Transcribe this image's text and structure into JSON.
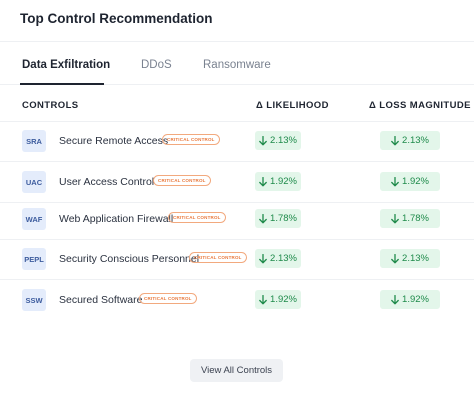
{
  "card": {
    "title": "Top Control Recommendation"
  },
  "tabs": [
    {
      "label": "Data Exfiltration",
      "active": true
    },
    {
      "label": "DDoS",
      "active": false
    },
    {
      "label": "Ransomware",
      "active": false
    }
  ],
  "table": {
    "headers": {
      "controls": "CONTROLS",
      "likelihood": "Δ LIKELIHOOD",
      "loss": "Δ LOSS MAGNITUDE"
    },
    "rows": [
      {
        "code": "SRA",
        "name": "Secure Remote Access",
        "badge": "CRITICAL CONTROL",
        "likelihood": "2.13%",
        "loss": "2.13%"
      },
      {
        "code": "UAC",
        "name": "User Access Control",
        "badge": "CRITICAL CONTROL",
        "likelihood": "1.92%",
        "loss": "1.92%"
      },
      {
        "code": "WAF",
        "name": "Web Application Firewall",
        "badge": "CRITICAL CONTROL",
        "likelihood": "1.78%",
        "loss": "1.78%"
      },
      {
        "code": "PEPL",
        "name": "Security Conscious Personnel",
        "badge": "CRITICAL CONTROL",
        "likelihood": "2.13%",
        "loss": "2.13%"
      },
      {
        "code": "SSW",
        "name": "Secured Software",
        "badge": "CRITICAL CONTROL",
        "likelihood": "1.92%",
        "loss": "1.92%"
      }
    ]
  },
  "footer": {
    "view_all_label": "View All Controls"
  },
  "icons": {
    "delta": "arrow-down-icon"
  },
  "colors": {
    "accent_green": "#1e8a4a",
    "badge_orange": "#e8773a",
    "code_blue": "#3d5c9e"
  }
}
